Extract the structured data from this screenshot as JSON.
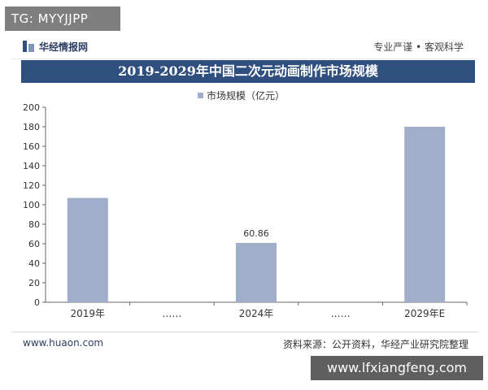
{
  "badge": "TG: MYYJJPP",
  "header": {
    "brand": "华经情报网",
    "slogan": "专业严谨 • 客观科学"
  },
  "title": "2019-2029年中国二次元动画制作市场规模",
  "chart_data": {
    "type": "bar",
    "categories": [
      "2019年",
      "……",
      "2024年",
      "……",
      "2029年E"
    ],
    "series": [
      {
        "name": "市场规模（亿元）",
        "values": [
          107,
          null,
          60.86,
          null,
          180
        ]
      }
    ],
    "data_labels": [
      null,
      null,
      "60.86",
      null,
      null
    ],
    "ylim": [
      0,
      200
    ],
    "yticks": [
      0,
      20,
      40,
      60,
      80,
      100,
      120,
      140,
      160,
      180,
      200
    ],
    "legend": "top-center",
    "grid": false,
    "bar_color": "#a0aec9"
  },
  "footer": {
    "url": "www.huaon.com",
    "source": "资料来源：公开资料，华经产业研究院整理"
  },
  "bottom_watermark": "www.lfxiangfeng.com"
}
